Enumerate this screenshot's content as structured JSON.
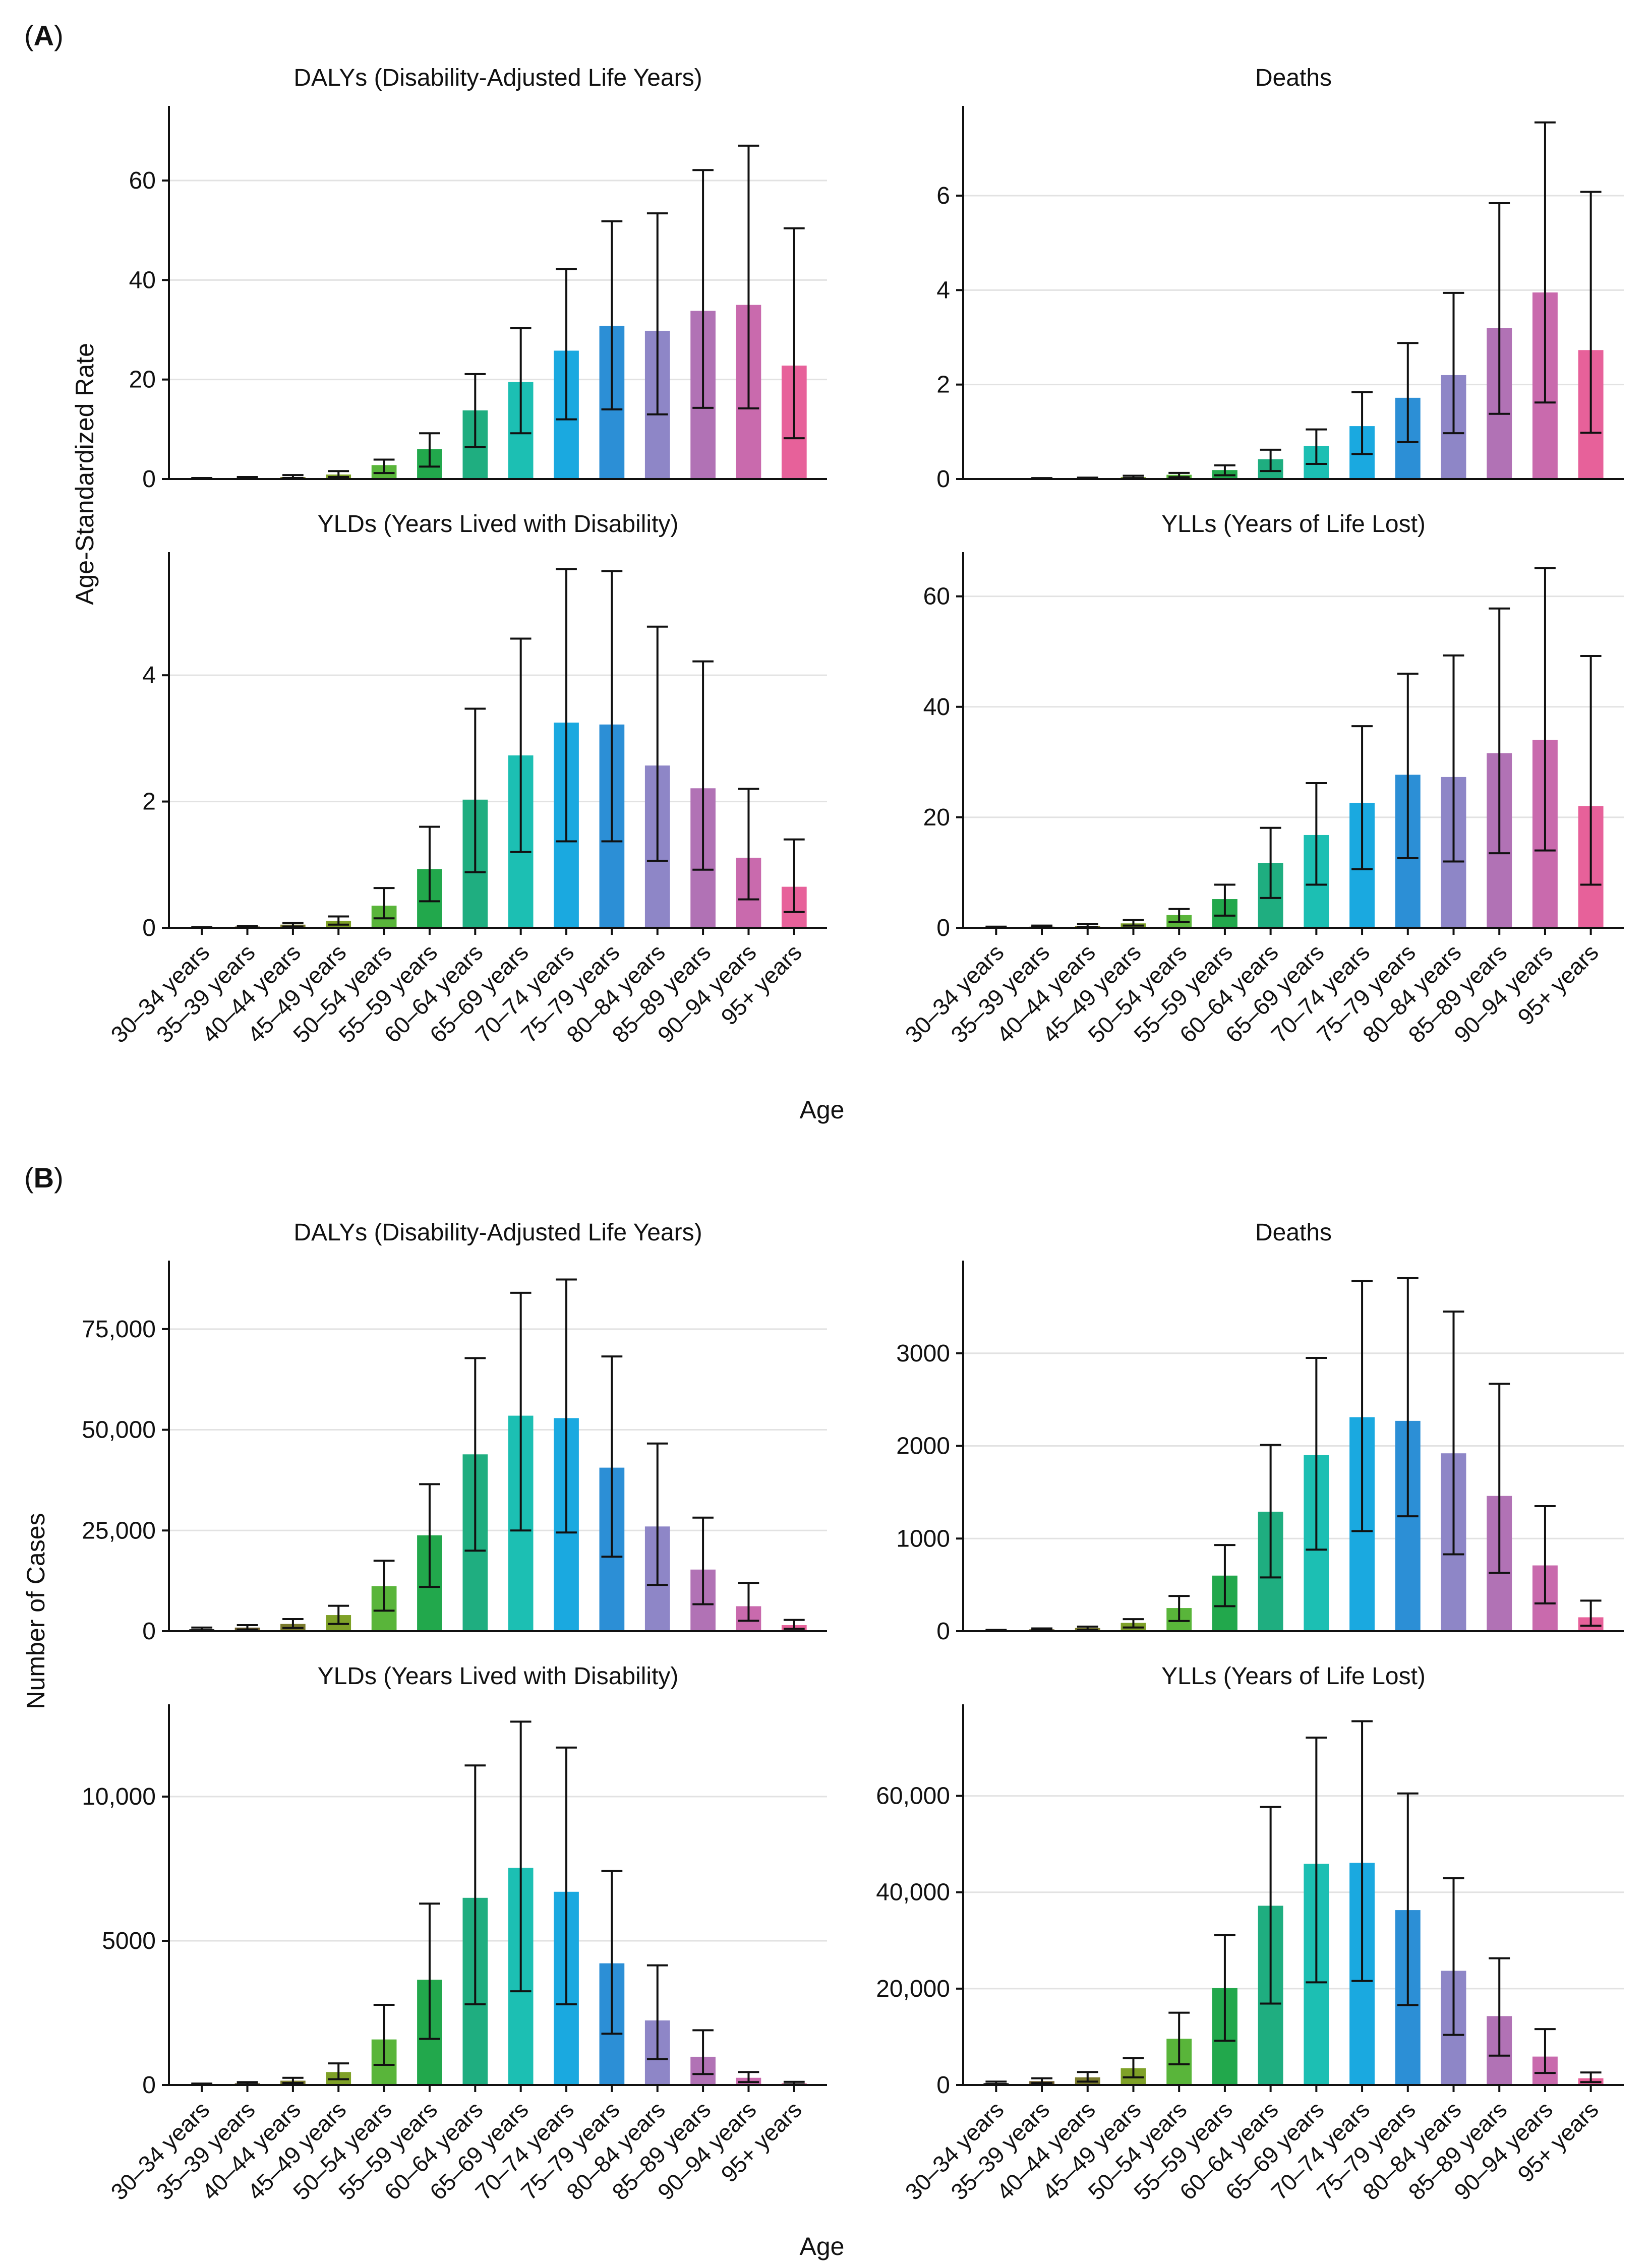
{
  "panels": [
    {
      "label": "A",
      "ylabel": "Age-Standardized Rate",
      "xlabel": "Age"
    },
    {
      "label": "B",
      "ylabel": "Number of Cases",
      "xlabel": "Age"
    }
  ],
  "colors": [
    "#2e2e2e",
    "#6b5a2a",
    "#7a7a2c",
    "#7fa128",
    "#59b53a",
    "#22a84c",
    "#1fae80",
    "#1cbfb3",
    "#1aa9e0",
    "#2c8fd6",
    "#8e86c7",
    "#b172b5",
    "#c96aad",
    "#e7619a"
  ],
  "chart_data": [
    {
      "type": "bar",
      "panel": "A",
      "title": "DALYs (Disability-Adjusted Life Years)",
      "categories": [
        "30–34 years",
        "35–39 years",
        "40–44 years",
        "45–49 years",
        "50–54 years",
        "55–59 years",
        "60–64 years",
        "65–69 years",
        "70–74 years",
        "75–79 years",
        "80–84 years",
        "85–89 years",
        "90–94 years",
        "95+ years"
      ],
      "values": [
        0.1,
        0.2,
        0.4,
        0.9,
        2.8,
        6.0,
        13.8,
        19.5,
        25.8,
        30.8,
        29.8,
        33.8,
        35.0,
        22.8
      ],
      "lower": [
        0.05,
        0.1,
        0.2,
        0.4,
        1.2,
        2.5,
        6.4,
        9.2,
        12.0,
        14.0,
        13.0,
        14.3,
        14.2,
        8.2
      ],
      "upper": [
        0.2,
        0.4,
        0.8,
        1.6,
        3.9,
        9.2,
        21.1,
        30.3,
        42.2,
        51.8,
        53.4,
        62.1,
        67.0,
        50.4
      ],
      "ylim": [
        0,
        75
      ],
      "yticks": [
        0,
        20,
        40,
        60
      ],
      "yticklabels": [
        "0",
        "20",
        "40",
        "60"
      ],
      "xlabel": "",
      "ylabel": "",
      "show_xticks": false
    },
    {
      "type": "bar",
      "panel": "A",
      "title": "Deaths",
      "categories": [
        "30–34 years",
        "35–39 years",
        "40–44 years",
        "45–49 years",
        "50–54 years",
        "55–59 years",
        "60–64 years",
        "65–69 years",
        "70–74 years",
        "75–79 years",
        "80–84 years",
        "85–89 years",
        "90–94 years",
        "95+ years"
      ],
      "values": [
        0.0,
        0.01,
        0.02,
        0.04,
        0.09,
        0.19,
        0.42,
        0.7,
        1.12,
        1.72,
        2.2,
        3.2,
        3.95,
        2.73
      ],
      "lower": [
        0.0,
        0.0,
        0.01,
        0.02,
        0.04,
        0.08,
        0.17,
        0.32,
        0.53,
        0.78,
        0.97,
        1.38,
        1.62,
        0.98
      ],
      "upper": [
        0.0,
        0.02,
        0.03,
        0.07,
        0.13,
        0.29,
        0.62,
        1.05,
        1.84,
        2.88,
        3.94,
        5.84,
        7.55,
        6.08
      ],
      "ylim": [
        0,
        7.9
      ],
      "yticks": [
        0,
        2,
        4,
        6
      ],
      "yticklabels": [
        "0",
        "2",
        "4",
        "6"
      ],
      "xlabel": "",
      "ylabel": "",
      "show_xticks": false
    },
    {
      "type": "bar",
      "panel": "A",
      "title": "YLDs (Years Lived with Disability)",
      "categories": [
        "30–34 years",
        "35–39 years",
        "40–44 years",
        "45–49 years",
        "50–54 years",
        "55–59 years",
        "60–64 years",
        "65–69 years",
        "70–74 years",
        "75–79 years",
        "80–84 years",
        "85–89 years",
        "90–94 years",
        "95+ years"
      ],
      "values": [
        0.01,
        0.02,
        0.05,
        0.11,
        0.35,
        0.93,
        2.03,
        2.73,
        3.25,
        3.22,
        2.57,
        2.21,
        1.11,
        0.65
      ],
      "lower": [
        0.0,
        0.01,
        0.02,
        0.05,
        0.15,
        0.42,
        0.88,
        1.2,
        1.37,
        1.37,
        1.06,
        0.92,
        0.45,
        0.25
      ],
      "upper": [
        0.01,
        0.03,
        0.08,
        0.18,
        0.63,
        1.6,
        3.47,
        4.58,
        5.68,
        5.65,
        4.77,
        4.22,
        2.2,
        1.4
      ],
      "ylim": [
        0,
        5.95
      ],
      "yticks": [
        0,
        2,
        4
      ],
      "yticklabels": [
        "0",
        "2",
        "4"
      ],
      "xlabel": "",
      "ylabel": "",
      "show_xticks": true
    },
    {
      "type": "bar",
      "panel": "A",
      "title": "YLLs (Years of Life Lost)",
      "categories": [
        "30–34 years",
        "35–39 years",
        "40–44 years",
        "45–49 years",
        "50–54 years",
        "55–59 years",
        "60–64 years",
        "65–69 years",
        "70–74 years",
        "75–79 years",
        "80–84 years",
        "85–89 years",
        "90–94 years",
        "95+ years"
      ],
      "values": [
        0.1,
        0.2,
        0.35,
        0.8,
        2.3,
        5.2,
        11.7,
        16.8,
        22.6,
        27.7,
        27.3,
        31.6,
        34.0,
        22.0
      ],
      "lower": [
        0.05,
        0.1,
        0.15,
        0.4,
        1.0,
        2.2,
        5.4,
        7.8,
        10.6,
        12.6,
        12.0,
        13.5,
        14.0,
        7.8
      ],
      "upper": [
        0.2,
        0.4,
        0.7,
        1.4,
        3.4,
        7.8,
        18.1,
        26.2,
        36.5,
        46.0,
        49.3,
        57.8,
        65.1,
        49.2
      ],
      "ylim": [
        0,
        68
      ],
      "yticks": [
        0,
        20,
        40,
        60
      ],
      "yticklabels": [
        "0",
        "20",
        "40",
        "60"
      ],
      "xlabel": "",
      "ylabel": "",
      "show_xticks": true
    },
    {
      "type": "bar",
      "panel": "B",
      "title": "DALYs (Disability-Adjusted Life Years)",
      "categories": [
        "30–34 years",
        "35–39 years",
        "40–44 years",
        "45–49 years",
        "50–54 years",
        "55–59 years",
        "60–64 years",
        "65–69 years",
        "70–74 years",
        "75–79 years",
        "80–84 years",
        "85–89 years",
        "90–94 years",
        "95+ years"
      ],
      "values": [
        500,
        900,
        1800,
        4000,
        11200,
        23800,
        43900,
        53500,
        52900,
        40600,
        26000,
        15300,
        6200,
        1500
      ],
      "lower": [
        200,
        400,
        800,
        1800,
        5100,
        11000,
        20000,
        25000,
        24500,
        18500,
        11500,
        6700,
        2600,
        600
      ],
      "upper": [
        900,
        1500,
        3000,
        6300,
        17500,
        36500,
        67800,
        84000,
        87300,
        68200,
        46600,
        28200,
        12000,
        2800
      ],
      "ylim": [
        0,
        92000
      ],
      "yticks": [
        0,
        25000,
        50000,
        75000
      ],
      "yticklabels": [
        "0",
        "25,000",
        "50,000",
        "75,000"
      ],
      "xlabel": "",
      "ylabel": "",
      "show_xticks": false
    },
    {
      "type": "bar",
      "panel": "B",
      "title": "Deaths",
      "categories": [
        "30–34 years",
        "35–39 years",
        "40–44 years",
        "45–49 years",
        "50–54 years",
        "55–59 years",
        "60–64 years",
        "65–69 years",
        "70–74 years",
        "75–79 years",
        "80–84 years",
        "85–89 years",
        "90–94 years",
        "95+ years"
      ],
      "values": [
        10,
        20,
        35,
        90,
        250,
        600,
        1290,
        1900,
        2310,
        2270,
        1920,
        1460,
        710,
        150
      ],
      "lower": [
        5,
        10,
        15,
        40,
        110,
        270,
        580,
        880,
        1080,
        1240,
        830,
        630,
        300,
        60
      ],
      "upper": [
        15,
        30,
        50,
        130,
        380,
        930,
        2010,
        2950,
        3780,
        3810,
        3450,
        2670,
        1350,
        330
      ],
      "ylim": [
        0,
        4000
      ],
      "yticks": [
        0,
        1000,
        2000,
        3000
      ],
      "yticklabels": [
        "0",
        "1000",
        "2000",
        "3000"
      ],
      "xlabel": "",
      "ylabel": "",
      "show_xticks": false
    },
    {
      "type": "bar",
      "panel": "B",
      "title": "YLDs (Years Lived with Disability)",
      "categories": [
        "30–34 years",
        "35–39 years",
        "40–44 years",
        "45–49 years",
        "50–54 years",
        "55–59 years",
        "60–64 years",
        "65–69 years",
        "70–74 years",
        "75–79 years",
        "80–84 years",
        "85–89 years",
        "90–94 years",
        "95+ years"
      ],
      "values": [
        30,
        60,
        150,
        450,
        1580,
        3650,
        6490,
        7530,
        6700,
        4220,
        2240,
        980,
        250,
        60
      ],
      "lower": [
        15,
        30,
        70,
        200,
        700,
        1600,
        2800,
        3250,
        2800,
        1780,
        900,
        380,
        100,
        25
      ],
      "upper": [
        50,
        100,
        250,
        750,
        2780,
        6290,
        11080,
        12600,
        11700,
        7420,
        4150,
        1900,
        450,
        110
      ],
      "ylim": [
        0,
        13200
      ],
      "yticks": [
        0,
        5000,
        10000
      ],
      "yticklabels": [
        "0",
        "5000",
        "10,000"
      ],
      "xlabel": "",
      "ylabel": "",
      "show_xticks": true
    },
    {
      "type": "bar",
      "panel": "B",
      "title": "YLLs (Years of Life Lost)",
      "categories": [
        "30–34 years",
        "35–39 years",
        "40–44 years",
        "45–49 years",
        "50–54 years",
        "55–59 years",
        "60–64 years",
        "65–69 years",
        "70–74 years",
        "75–79 years",
        "80–84 years",
        "85–89 years",
        "90–94 years",
        "95+ years"
      ],
      "values": [
        400,
        800,
        1600,
        3500,
        9600,
        20100,
        37200,
        45900,
        46100,
        36300,
        23700,
        14300,
        5900,
        1400
      ],
      "lower": [
        200,
        400,
        700,
        1600,
        4300,
        9200,
        16900,
        21300,
        21600,
        16600,
        10400,
        6100,
        2500,
        600
      ],
      "upper": [
        700,
        1400,
        2700,
        5600,
        15000,
        31100,
        57700,
        72100,
        75500,
        60500,
        42900,
        26300,
        11600,
        2600
      ],
      "ylim": [
        0,
        79000
      ],
      "yticks": [
        0,
        20000,
        40000,
        60000
      ],
      "yticklabels": [
        "0",
        "20,000",
        "40,000",
        "60,000"
      ],
      "xlabel": "",
      "ylabel": "",
      "show_xticks": true
    }
  ]
}
